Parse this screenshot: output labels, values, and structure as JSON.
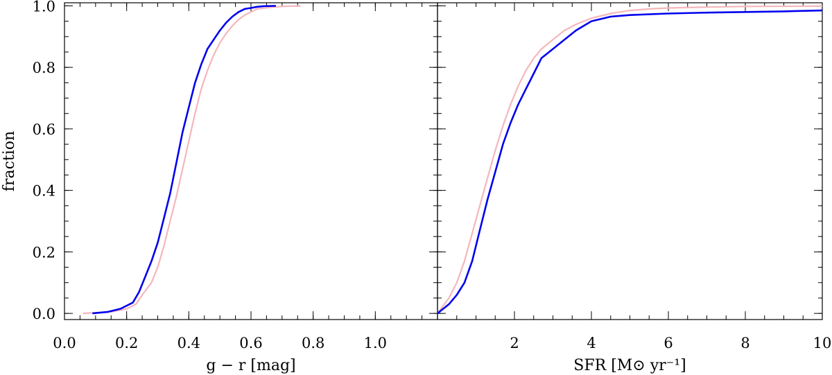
{
  "chart_data": [
    {
      "type": "line",
      "panel": "left",
      "xlabel": "g − r [mag]",
      "ylabel": "fraction",
      "xlim": [
        0.0,
        1.2
      ],
      "ylim": [
        -0.02,
        1.01
      ],
      "xticks": [
        0.0,
        0.2,
        0.4,
        0.6,
        0.8,
        1.0
      ],
      "xtick_labels": [
        "0.0",
        "0.2",
        "0.4",
        "0.6",
        "0.8",
        "1.0"
      ],
      "yticks": [
        0.0,
        0.2,
        0.4,
        0.6,
        0.8,
        1.0
      ],
      "ytick_labels": [
        "0.0",
        "0.2",
        "0.4",
        "0.6",
        "0.8",
        "1.0"
      ],
      "grid": false,
      "series": [
        {
          "color": "#f4b6bc",
          "x": [
            0.06,
            0.15,
            0.2,
            0.23,
            0.25,
            0.28,
            0.3,
            0.32,
            0.34,
            0.36,
            0.38,
            0.4,
            0.42,
            0.44,
            0.46,
            0.48,
            0.5,
            0.52,
            0.54,
            0.56,
            0.58,
            0.6,
            0.62,
            0.66,
            0.7,
            0.76
          ],
          "y": [
            0.0,
            0.005,
            0.015,
            0.03,
            0.06,
            0.1,
            0.15,
            0.22,
            0.3,
            0.38,
            0.47,
            0.56,
            0.65,
            0.73,
            0.79,
            0.84,
            0.88,
            0.91,
            0.935,
            0.955,
            0.97,
            0.98,
            0.99,
            0.995,
            0.998,
            1.0
          ]
        },
        {
          "color": "#0000ee",
          "x": [
            0.09,
            0.14,
            0.18,
            0.22,
            0.24,
            0.26,
            0.28,
            0.3,
            0.32,
            0.34,
            0.36,
            0.38,
            0.4,
            0.42,
            0.44,
            0.46,
            0.48,
            0.5,
            0.52,
            0.54,
            0.56,
            0.58,
            0.6,
            0.62,
            0.64,
            0.68
          ],
          "y": [
            0.0,
            0.005,
            0.015,
            0.035,
            0.07,
            0.12,
            0.17,
            0.23,
            0.31,
            0.39,
            0.49,
            0.59,
            0.67,
            0.75,
            0.81,
            0.86,
            0.89,
            0.92,
            0.945,
            0.965,
            0.98,
            0.99,
            0.993,
            0.997,
            0.999,
            1.0
          ]
        }
      ]
    },
    {
      "type": "line",
      "panel": "right",
      "xlabel": "SFR [M⊙ yr⁻¹]",
      "ylabel": "",
      "xlim": [
        0.0,
        10.0
      ],
      "ylim": [
        -0.02,
        1.01
      ],
      "xticks": [
        2,
        4,
        6,
        8,
        10
      ],
      "xtick_labels": [
        "2",
        "4",
        "6",
        "8",
        "10"
      ],
      "yticks": [
        0.0,
        0.2,
        0.4,
        0.6,
        0.8,
        1.0
      ],
      "grid": false,
      "series": [
        {
          "color": "#f4b6bc",
          "x": [
            0.0,
            0.3,
            0.5,
            0.7,
            0.9,
            1.1,
            1.3,
            1.5,
            1.7,
            1.9,
            2.1,
            2.3,
            2.5,
            2.7,
            3.0,
            3.3,
            3.6,
            4.0,
            4.5,
            5.0,
            5.5,
            6.0,
            7.0,
            8.0,
            10.0
          ],
          "y": [
            0.0,
            0.05,
            0.1,
            0.17,
            0.26,
            0.35,
            0.44,
            0.53,
            0.61,
            0.68,
            0.74,
            0.79,
            0.83,
            0.86,
            0.89,
            0.92,
            0.94,
            0.96,
            0.975,
            0.985,
            0.99,
            0.993,
            0.996,
            0.998,
            0.999
          ]
        },
        {
          "color": "#0000ee",
          "x": [
            0.0,
            0.3,
            0.5,
            0.7,
            0.9,
            1.1,
            1.3,
            1.5,
            1.7,
            1.9,
            2.1,
            2.3,
            2.5,
            2.7,
            3.0,
            3.3,
            3.6,
            4.0,
            4.5,
            5.0,
            6.0,
            7.0,
            8.0,
            9.0,
            10.0
          ],
          "y": [
            0.0,
            0.03,
            0.06,
            0.1,
            0.17,
            0.27,
            0.37,
            0.46,
            0.55,
            0.62,
            0.68,
            0.73,
            0.78,
            0.83,
            0.86,
            0.89,
            0.92,
            0.95,
            0.965,
            0.97,
            0.975,
            0.978,
            0.98,
            0.982,
            0.985
          ]
        }
      ]
    }
  ]
}
